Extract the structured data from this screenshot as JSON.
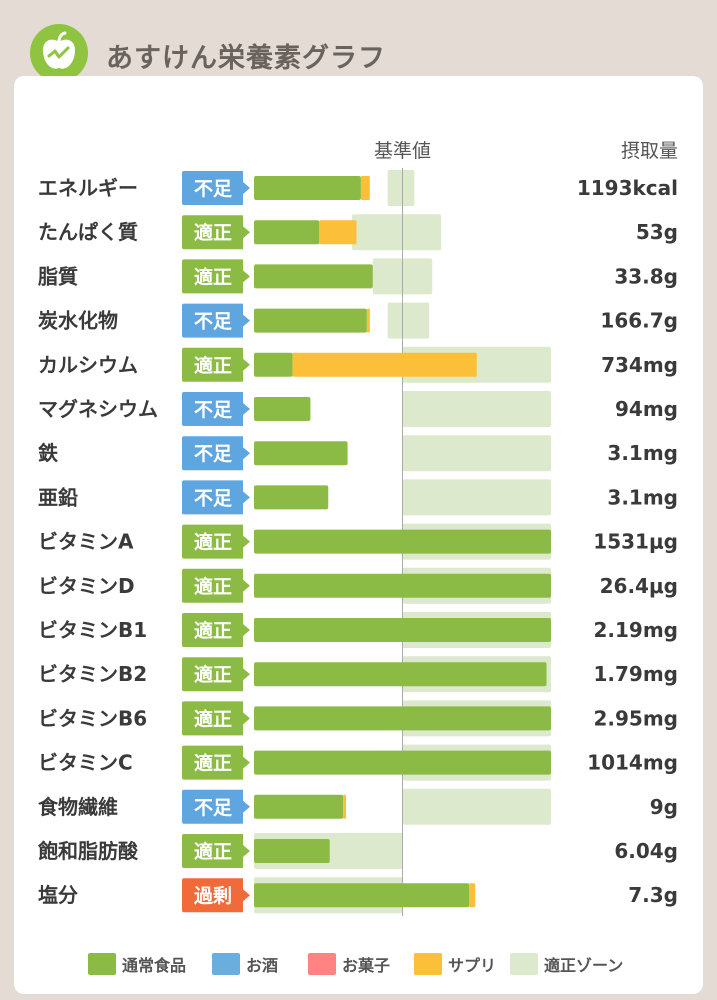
{
  "app": {
    "title": "あすけん栄養素グラフ"
  },
  "chart_data": {
    "type": "bar",
    "orientation": "horizontal",
    "stacked": true,
    "baseline_label": "基準値",
    "intake_label": "摂取量",
    "scale_note": "values expressed as percent of the reference value (基準値 = 100); bars clipped at 200",
    "legend": [
      {
        "key": "normal",
        "label": "通常食品",
        "color": "#8bbb44"
      },
      {
        "key": "alcohol",
        "label": "お酒",
        "color": "#6aaee0"
      },
      {
        "key": "snack",
        "label": "お菓子",
        "color": "#ff8383"
      },
      {
        "key": "supplement",
        "label": "サプリ",
        "color": "#fbbf3a"
      },
      {
        "key": "zone",
        "label": "適正ゾーン",
        "color": "#dde9cc"
      }
    ],
    "status_colors": {
      "適正": "#8bbb44",
      "不足": "#5fa6e0",
      "過剰": "#f06a3a"
    },
    "rows": [
      {
        "name": "エネルギー",
        "status": "不足",
        "normal": 72,
        "supplement": 6,
        "zone": [
          90,
          108
        ],
        "intake": "1193kcal"
      },
      {
        "name": "たんぱく質",
        "status": "適正",
        "normal": 44,
        "supplement": 25,
        "zone": [
          66,
          126
        ],
        "intake": "53g"
      },
      {
        "name": "脂質",
        "status": "適正",
        "normal": 80,
        "supplement": 0,
        "zone": [
          80,
          120
        ],
        "intake": "33.8g"
      },
      {
        "name": "炭水化物",
        "status": "不足",
        "normal": 76,
        "supplement": 2,
        "zone": [
          90,
          118
        ],
        "intake": "166.7g"
      },
      {
        "name": "カルシウム",
        "status": "適正",
        "normal": 26,
        "supplement": 124,
        "zone": [
          100,
          200
        ],
        "intake": "734mg"
      },
      {
        "name": "マグネシウム",
        "status": "不足",
        "normal": 38,
        "supplement": 0,
        "zone": [
          100,
          200
        ],
        "intake": "94mg"
      },
      {
        "name": "鉄",
        "status": "不足",
        "normal": 63,
        "supplement": 0,
        "zone": [
          100,
          200
        ],
        "intake": "3.1mg"
      },
      {
        "name": "亜鉛",
        "status": "不足",
        "normal": 50,
        "supplement": 0,
        "zone": [
          100,
          200
        ],
        "intake": "3.1mg"
      },
      {
        "name": "ビタミンA",
        "status": "適正",
        "normal": 200,
        "supplement": 0,
        "zone": [
          100,
          200
        ],
        "intake": "1531μg"
      },
      {
        "name": "ビタミンD",
        "status": "適正",
        "normal": 200,
        "supplement": 0,
        "zone": [
          100,
          200
        ],
        "intake": "26.4μg"
      },
      {
        "name": "ビタミンB1",
        "status": "適正",
        "normal": 200,
        "supplement": 0,
        "zone": [
          100,
          200
        ],
        "intake": "2.19mg"
      },
      {
        "name": "ビタミンB2",
        "status": "適正",
        "normal": 197,
        "supplement": 0,
        "zone": [
          100,
          200
        ],
        "intake": "1.79mg"
      },
      {
        "name": "ビタミンB6",
        "status": "適正",
        "normal": 200,
        "supplement": 0,
        "zone": [
          100,
          200
        ],
        "intake": "2.95mg"
      },
      {
        "name": "ビタミンC",
        "status": "適正",
        "normal": 200,
        "supplement": 0,
        "zone": [
          100,
          200
        ],
        "intake": "1014mg"
      },
      {
        "name": "食物繊維",
        "status": "不足",
        "normal": 60,
        "supplement": 2,
        "zone": [
          100,
          200
        ],
        "intake": "9g"
      },
      {
        "name": "飽和脂肪酸",
        "status": "適正",
        "normal": 51,
        "supplement": 0,
        "zone": [
          0,
          100
        ],
        "intake": "6.04g"
      },
      {
        "name": "塩分",
        "status": "過剰",
        "normal": 145,
        "supplement": 4,
        "zone": [
          0,
          100
        ],
        "intake": "7.3g"
      }
    ]
  }
}
